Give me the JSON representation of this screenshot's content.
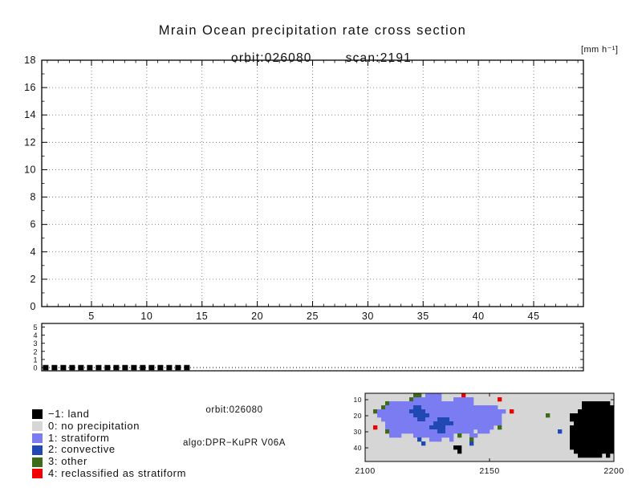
{
  "header": {
    "title": "Mrain Ocean precipitation rate cross section",
    "orbit": "orbit:026080",
    "scan": "scan:2191",
    "units": "[mm h⁻¹]"
  },
  "footer": {
    "orbit": "orbit:026080",
    "algo": "algo:DPR−KuPR V06A"
  },
  "colors": {
    "land": "#000000",
    "no_precip": "#d6d6d6",
    "stratiform": "#7b7bf2",
    "convective": "#2149b3",
    "other": "#3e6b17",
    "reclassified": "#f10000",
    "frame": "#000000",
    "grid": "#666666"
  },
  "legend": {
    "items": [
      {
        "code": -1,
        "label": "−1: land",
        "color_key": "land"
      },
      {
        "code": 0,
        "label": "0: no precipitation",
        "color_key": "no_precip"
      },
      {
        "code": 1,
        "label": "1: stratiform",
        "color_key": "stratiform"
      },
      {
        "code": 2,
        "label": "2: convective",
        "color_key": "convective"
      },
      {
        "code": 3,
        "label": "3: other",
        "color_key": "other"
      },
      {
        "code": 4,
        "label": "4: reclassified as stratiform",
        "color_key": "reclassified"
      }
    ]
  },
  "chart_data": [
    {
      "id": "cross_section",
      "type": "line",
      "title": "Mrain Ocean precipitation rate cross section",
      "subtitle": "orbit:026080   scan:2191",
      "units_label": "[mm h⁻¹]",
      "xlim": [
        0.5,
        49.5
      ],
      "ylim": [
        0,
        18
      ],
      "xticks": [
        5,
        10,
        15,
        20,
        25,
        30,
        35,
        40,
        45
      ],
      "yticks": [
        0,
        2,
        4,
        6,
        8,
        10,
        12,
        14,
        16,
        18
      ],
      "grid": "dotted",
      "series": []
    },
    {
      "id": "flag_panel",
      "type": "line",
      "xlim": [
        0.5,
        49.5
      ],
      "ylim": [
        -0.4,
        5.45
      ],
      "yticks": [
        0,
        1,
        2,
        3,
        4,
        5
      ],
      "baseline_y": 0,
      "marker_segment": {
        "y": 0,
        "x_start": 0.6,
        "x_end": 14.1,
        "style": "thick-black-dashes"
      }
    },
    {
      "id": "classification_map",
      "type": "heatmap",
      "xlim": [
        2100,
        2200
      ],
      "xticks": [
        2100,
        2150,
        2200
      ],
      "yticks": [
        10,
        20,
        30,
        40
      ],
      "cell_codes": {
        ".": "no_precip",
        "1": "stratiform",
        "2": "convective",
        "3": "other",
        "4": "reclassified",
        "L": "land"
      },
      "rows": [
        "............33.1111.....4.....................................",
        "...........31111111...11111......4............................",
        ".....3111111111111111111111...........................LLLLLLL.",
        "....31111111221111111111111111111.....................LLLLLLLLL",
        "..311111111222211111111111111111111.4................LLLLLLLLLLL",
        "...1111111112222111111111111111111...........3.....LLLLLLLLLLL",
        "....111111111221112221111111111111.................LLLLLLLLLLL",
        ".....11111111111122222111111111111..................LLLLLLLLLLL",
        "..4..111111111112222111111111111.3.................LLLLLLLLLLL",
        ".....3111111111111221111111.111.................2..LLLLLLLLLLL",
        "......111...1111111111.3..11.......................LLLLLLLLLLL",
        ".............2..111..1....3........................LLLLLLLLLLL",
        "..............2...........2........................LLLLLLLLLLL",
        "......................LL...........................LLLLLLLLLLL",
        ".......................L............................LLLLLLLLLL",
        ".....................................................LLLLLL.L.",
        ".............................................................."
      ]
    }
  ]
}
